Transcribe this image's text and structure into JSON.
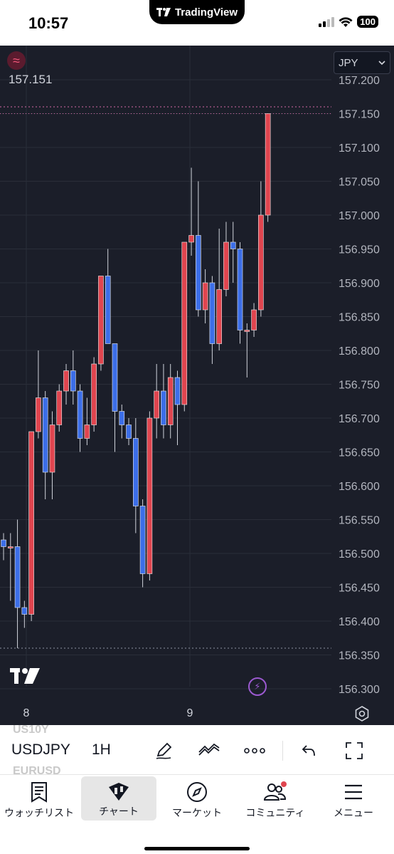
{
  "status_bar": {
    "time": "10:57",
    "island_label": "TradingView",
    "battery": "100"
  },
  "chart": {
    "currency": "JPY",
    "last_price": "157.151",
    "price_levels": [
      "157.200",
      "157.150",
      "157.100",
      "157.050",
      "157.000",
      "156.950",
      "156.900",
      "156.850",
      "156.800",
      "156.750",
      "156.700",
      "156.650",
      "156.600",
      "156.550",
      "156.500",
      "156.450",
      "156.400",
      "156.350",
      "156.300"
    ],
    "date_labels": [
      "8",
      "9"
    ],
    "colors": {
      "background": "#1b1e29",
      "up": "#3c6ee8",
      "down": "#e0454f",
      "wick": "#d1d4dc",
      "grid": "#2a2e39"
    }
  },
  "chart_data": {
    "type": "candlestick",
    "symbol": "USDJPY",
    "interval": "1H",
    "ylim": [
      156.28,
      157.2
    ],
    "candles": [
      {
        "open": 156.52,
        "high": 156.53,
        "low": 156.49,
        "close": 156.51
      },
      {
        "open": 156.51,
        "high": 156.53,
        "low": 156.43,
        "close": 156.51
      },
      {
        "open": 156.51,
        "high": 156.55,
        "low": 156.36,
        "close": 156.42
      },
      {
        "open": 156.42,
        "high": 156.43,
        "low": 156.39,
        "close": 156.41
      },
      {
        "open": 156.41,
        "high": 156.68,
        "low": 156.4,
        "close": 156.68
      },
      {
        "open": 156.68,
        "high": 156.8,
        "low": 156.67,
        "close": 156.73
      },
      {
        "open": 156.73,
        "high": 156.74,
        "low": 156.58,
        "close": 156.62
      },
      {
        "open": 156.62,
        "high": 156.71,
        "low": 156.58,
        "close": 156.69
      },
      {
        "open": 156.69,
        "high": 156.75,
        "low": 156.68,
        "close": 156.74
      },
      {
        "open": 156.74,
        "high": 156.78,
        "low": 156.72,
        "close": 156.77
      },
      {
        "open": 156.77,
        "high": 156.8,
        "low": 156.72,
        "close": 156.74
      },
      {
        "open": 156.74,
        "high": 156.75,
        "low": 156.65,
        "close": 156.67
      },
      {
        "open": 156.67,
        "high": 156.73,
        "low": 156.66,
        "close": 156.69
      },
      {
        "open": 156.69,
        "high": 156.79,
        "low": 156.68,
        "close": 156.78
      },
      {
        "open": 156.78,
        "high": 156.91,
        "low": 156.77,
        "close": 156.91
      },
      {
        "open": 156.91,
        "high": 156.95,
        "low": 156.81,
        "close": 156.81
      },
      {
        "open": 156.81,
        "high": 156.81,
        "low": 156.65,
        "close": 156.71
      },
      {
        "open": 156.71,
        "high": 156.72,
        "low": 156.67,
        "close": 156.69
      },
      {
        "open": 156.69,
        "high": 156.7,
        "low": 156.66,
        "close": 156.67
      },
      {
        "open": 156.67,
        "high": 156.7,
        "low": 156.53,
        "close": 156.57
      },
      {
        "open": 156.57,
        "high": 156.58,
        "low": 156.45,
        "close": 156.47
      },
      {
        "open": 156.47,
        "high": 156.71,
        "low": 156.46,
        "close": 156.7
      },
      {
        "open": 156.7,
        "high": 156.78,
        "low": 156.67,
        "close": 156.74
      },
      {
        "open": 156.74,
        "high": 156.78,
        "low": 156.67,
        "close": 156.69
      },
      {
        "open": 156.69,
        "high": 156.78,
        "low": 156.67,
        "close": 156.76
      },
      {
        "open": 156.76,
        "high": 156.77,
        "low": 156.66,
        "close": 156.72
      },
      {
        "open": 156.72,
        "high": 156.96,
        "low": 156.71,
        "close": 156.96
      },
      {
        "open": 156.96,
        "high": 157.07,
        "low": 156.94,
        "close": 156.97
      },
      {
        "open": 156.97,
        "high": 157.05,
        "low": 156.85,
        "close": 156.86
      },
      {
        "open": 156.86,
        "high": 156.92,
        "low": 156.84,
        "close": 156.9
      },
      {
        "open": 156.9,
        "high": 156.91,
        "low": 156.78,
        "close": 156.81
      },
      {
        "open": 156.81,
        "high": 156.98,
        "low": 156.8,
        "close": 156.89
      },
      {
        "open": 156.89,
        "high": 156.99,
        "low": 156.88,
        "close": 156.96
      },
      {
        "open": 156.96,
        "high": 156.99,
        "low": 156.9,
        "close": 156.95
      },
      {
        "open": 156.95,
        "high": 156.96,
        "low": 156.81,
        "close": 156.83
      },
      {
        "open": 156.83,
        "high": 156.84,
        "low": 156.76,
        "close": 156.83
      },
      {
        "open": 156.83,
        "high": 156.87,
        "low": 156.82,
        "close": 156.86
      },
      {
        "open": 156.86,
        "high": 157.05,
        "low": 156.85,
        "close": 157.0
      },
      {
        "open": 157.0,
        "high": 157.15,
        "low": 156.99,
        "close": 157.15
      }
    ]
  },
  "symbol_bar": {
    "symbol": "USDJPY",
    "interval": "1H",
    "prev_symbol": "US10Y",
    "next_symbol": "EURUSD"
  },
  "toolbar_icons": [
    "pen-icon",
    "indicators-icon",
    "more-icon",
    "undo-icon",
    "fullscreen-icon"
  ],
  "bottom_nav": {
    "items": [
      {
        "label": "ウォッチリスト",
        "icon": "watchlist-icon"
      },
      {
        "label": "チャート",
        "icon": "chart-icon"
      },
      {
        "label": "マーケット",
        "icon": "compass-icon"
      },
      {
        "label": "コミュニティ",
        "icon": "community-icon"
      },
      {
        "label": "メニュー",
        "icon": "menu-icon"
      }
    ]
  }
}
